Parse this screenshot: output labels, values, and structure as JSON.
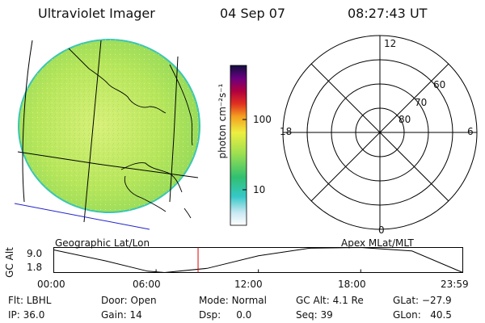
{
  "header": {
    "title": "Ultraviolet Imager",
    "date": "04 Sep 07",
    "time": "08:27:43 UT"
  },
  "colorbar": {
    "label": "photon cm⁻²s⁻¹",
    "ticks": [
      "100",
      "10"
    ],
    "scale": "log"
  },
  "left_panel": {
    "label": "Geographic Lat/Lon"
  },
  "polar_plot": {
    "label": "Apex MLat/MLT",
    "mlt_labels": {
      "top": "12",
      "bottom": "0",
      "left": "18",
      "right": "6"
    },
    "lat_labels": [
      "60",
      "70",
      "80"
    ]
  },
  "alt_plot": {
    "ylabel": "GC Alt",
    "yticks": [
      "9.0",
      "1.8"
    ],
    "xticks": [
      "00:00",
      "06:00",
      "12:00",
      "18:00",
      "23:59"
    ],
    "cursor_time": "08:27:43",
    "colors": {
      "curve": "#000000",
      "cursor": "#e00000"
    }
  },
  "chart_data": {
    "type": "line",
    "title": "",
    "xlabel": "",
    "ylabel": "GC Alt",
    "x": [
      "00:00",
      "03:00",
      "05:30",
      "06:30",
      "09:00",
      "12:00",
      "15:00",
      "18:00",
      "21:00",
      "23:59"
    ],
    "values": [
      8.3,
      5.2,
      2.2,
      1.8,
      3.0,
      6.6,
      8.8,
      9.0,
      8.0,
      1.8
    ],
    "ylim": [
      1.8,
      9.0
    ],
    "grid": false
  },
  "status": {
    "flt_label": "Flt:",
    "flt_value": "LBHL",
    "ip_label": "IP:",
    "ip_value": "36.0",
    "door_label": "Door:",
    "door_value": "Open",
    "gain_label": "Gain:",
    "gain_value": "14",
    "mode_label": "Mode:",
    "mode_value": "Normal",
    "dsp_label": "Dsp:",
    "dsp_value": "0.0",
    "gcalt_label": "GC Alt:",
    "gcalt_value": "4.1 Re",
    "seq_label": "Seq:",
    "seq_value": "39",
    "glat_label": "GLat:",
    "glat_value": "−27.9",
    "glon_label": "GLon:",
    "glon_value": "40.5"
  },
  "colors": {
    "image_fill": "#b4e85a",
    "image_edge": "#39c6b4",
    "coast_line": "#000000",
    "blue_line": "#2222cc",
    "cursor": "#e00000"
  }
}
